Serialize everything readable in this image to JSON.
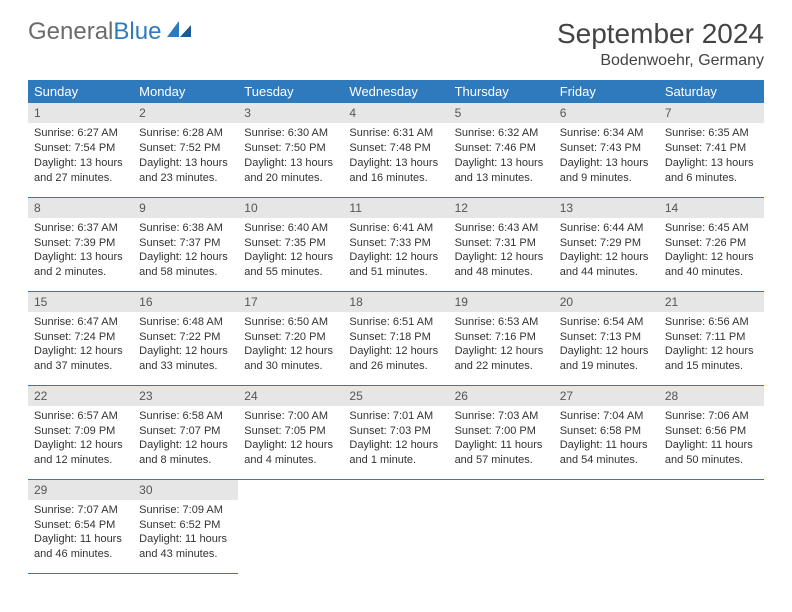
{
  "brand": {
    "part1": "General",
    "part2": "Blue"
  },
  "title": "September 2024",
  "location": "Bodenwoehr, Germany",
  "colors": {
    "header_bg": "#2f79bd",
    "header_text": "#ffffff",
    "daynum_bg": "#e6e6e6",
    "border": "#2f79bd",
    "text": "#333333",
    "brand_gray": "#6b6b6b",
    "brand_blue": "#2f79bd",
    "page_bg": "#ffffff"
  },
  "weekdays": [
    "Sunday",
    "Monday",
    "Tuesday",
    "Wednesday",
    "Thursday",
    "Friday",
    "Saturday"
  ],
  "weeks": [
    [
      {
        "n": "1",
        "sr": "Sunrise: 6:27 AM",
        "ss": "Sunset: 7:54 PM",
        "d1": "Daylight: 13 hours",
        "d2": "and 27 minutes."
      },
      {
        "n": "2",
        "sr": "Sunrise: 6:28 AM",
        "ss": "Sunset: 7:52 PM",
        "d1": "Daylight: 13 hours",
        "d2": "and 23 minutes."
      },
      {
        "n": "3",
        "sr": "Sunrise: 6:30 AM",
        "ss": "Sunset: 7:50 PM",
        "d1": "Daylight: 13 hours",
        "d2": "and 20 minutes."
      },
      {
        "n": "4",
        "sr": "Sunrise: 6:31 AM",
        "ss": "Sunset: 7:48 PM",
        "d1": "Daylight: 13 hours",
        "d2": "and 16 minutes."
      },
      {
        "n": "5",
        "sr": "Sunrise: 6:32 AM",
        "ss": "Sunset: 7:46 PM",
        "d1": "Daylight: 13 hours",
        "d2": "and 13 minutes."
      },
      {
        "n": "6",
        "sr": "Sunrise: 6:34 AM",
        "ss": "Sunset: 7:43 PM",
        "d1": "Daylight: 13 hours",
        "d2": "and 9 minutes."
      },
      {
        "n": "7",
        "sr": "Sunrise: 6:35 AM",
        "ss": "Sunset: 7:41 PM",
        "d1": "Daylight: 13 hours",
        "d2": "and 6 minutes."
      }
    ],
    [
      {
        "n": "8",
        "sr": "Sunrise: 6:37 AM",
        "ss": "Sunset: 7:39 PM",
        "d1": "Daylight: 13 hours",
        "d2": "and 2 minutes."
      },
      {
        "n": "9",
        "sr": "Sunrise: 6:38 AM",
        "ss": "Sunset: 7:37 PM",
        "d1": "Daylight: 12 hours",
        "d2": "and 58 minutes."
      },
      {
        "n": "10",
        "sr": "Sunrise: 6:40 AM",
        "ss": "Sunset: 7:35 PM",
        "d1": "Daylight: 12 hours",
        "d2": "and 55 minutes."
      },
      {
        "n": "11",
        "sr": "Sunrise: 6:41 AM",
        "ss": "Sunset: 7:33 PM",
        "d1": "Daylight: 12 hours",
        "d2": "and 51 minutes."
      },
      {
        "n": "12",
        "sr": "Sunrise: 6:43 AM",
        "ss": "Sunset: 7:31 PM",
        "d1": "Daylight: 12 hours",
        "d2": "and 48 minutes."
      },
      {
        "n": "13",
        "sr": "Sunrise: 6:44 AM",
        "ss": "Sunset: 7:29 PM",
        "d1": "Daylight: 12 hours",
        "d2": "and 44 minutes."
      },
      {
        "n": "14",
        "sr": "Sunrise: 6:45 AM",
        "ss": "Sunset: 7:26 PM",
        "d1": "Daylight: 12 hours",
        "d2": "and 40 minutes."
      }
    ],
    [
      {
        "n": "15",
        "sr": "Sunrise: 6:47 AM",
        "ss": "Sunset: 7:24 PM",
        "d1": "Daylight: 12 hours",
        "d2": "and 37 minutes."
      },
      {
        "n": "16",
        "sr": "Sunrise: 6:48 AM",
        "ss": "Sunset: 7:22 PM",
        "d1": "Daylight: 12 hours",
        "d2": "and 33 minutes."
      },
      {
        "n": "17",
        "sr": "Sunrise: 6:50 AM",
        "ss": "Sunset: 7:20 PM",
        "d1": "Daylight: 12 hours",
        "d2": "and 30 minutes."
      },
      {
        "n": "18",
        "sr": "Sunrise: 6:51 AM",
        "ss": "Sunset: 7:18 PM",
        "d1": "Daylight: 12 hours",
        "d2": "and 26 minutes."
      },
      {
        "n": "19",
        "sr": "Sunrise: 6:53 AM",
        "ss": "Sunset: 7:16 PM",
        "d1": "Daylight: 12 hours",
        "d2": "and 22 minutes."
      },
      {
        "n": "20",
        "sr": "Sunrise: 6:54 AM",
        "ss": "Sunset: 7:13 PM",
        "d1": "Daylight: 12 hours",
        "d2": "and 19 minutes."
      },
      {
        "n": "21",
        "sr": "Sunrise: 6:56 AM",
        "ss": "Sunset: 7:11 PM",
        "d1": "Daylight: 12 hours",
        "d2": "and 15 minutes."
      }
    ],
    [
      {
        "n": "22",
        "sr": "Sunrise: 6:57 AM",
        "ss": "Sunset: 7:09 PM",
        "d1": "Daylight: 12 hours",
        "d2": "and 12 minutes."
      },
      {
        "n": "23",
        "sr": "Sunrise: 6:58 AM",
        "ss": "Sunset: 7:07 PM",
        "d1": "Daylight: 12 hours",
        "d2": "and 8 minutes."
      },
      {
        "n": "24",
        "sr": "Sunrise: 7:00 AM",
        "ss": "Sunset: 7:05 PM",
        "d1": "Daylight: 12 hours",
        "d2": "and 4 minutes."
      },
      {
        "n": "25",
        "sr": "Sunrise: 7:01 AM",
        "ss": "Sunset: 7:03 PM",
        "d1": "Daylight: 12 hours",
        "d2": "and 1 minute."
      },
      {
        "n": "26",
        "sr": "Sunrise: 7:03 AM",
        "ss": "Sunset: 7:00 PM",
        "d1": "Daylight: 11 hours",
        "d2": "and 57 minutes."
      },
      {
        "n": "27",
        "sr": "Sunrise: 7:04 AM",
        "ss": "Sunset: 6:58 PM",
        "d1": "Daylight: 11 hours",
        "d2": "and 54 minutes."
      },
      {
        "n": "28",
        "sr": "Sunrise: 7:06 AM",
        "ss": "Sunset: 6:56 PM",
        "d1": "Daylight: 11 hours",
        "d2": "and 50 minutes."
      }
    ],
    [
      {
        "n": "29",
        "sr": "Sunrise: 7:07 AM",
        "ss": "Sunset: 6:54 PM",
        "d1": "Daylight: 11 hours",
        "d2": "and 46 minutes."
      },
      {
        "n": "30",
        "sr": "Sunrise: 7:09 AM",
        "ss": "Sunset: 6:52 PM",
        "d1": "Daylight: 11 hours",
        "d2": "and 43 minutes."
      },
      null,
      null,
      null,
      null,
      null
    ]
  ]
}
